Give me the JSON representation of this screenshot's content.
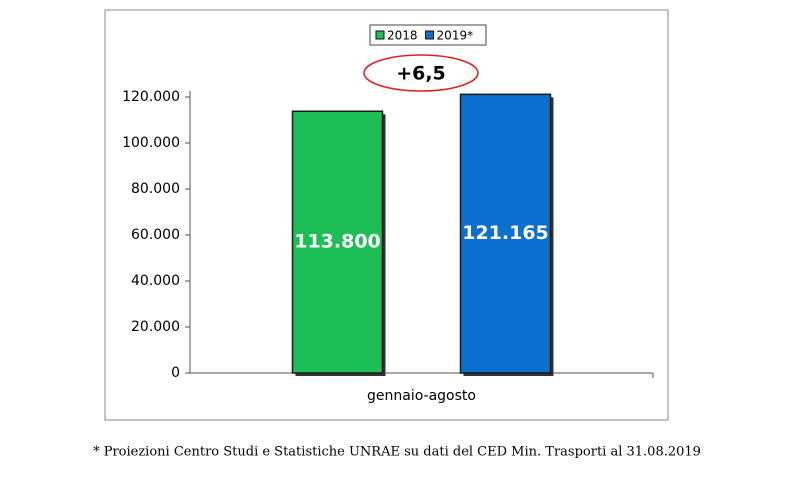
{
  "chart_data": {
    "type": "bar",
    "categories": [
      "gennaio-agosto"
    ],
    "series": [
      {
        "name": "2018",
        "color": "#1cbf55",
        "values": [
          113800
        ],
        "value_labels": [
          "113.800"
        ]
      },
      {
        "name": "2019*",
        "color": "#0a6fce",
        "values": [
          121165
        ],
        "value_labels": [
          "121.165"
        ]
      }
    ],
    "ylim": [
      0,
      120000
    ],
    "yticks": [
      0,
      {
        "value": 20000,
        "label": "20.000"
      },
      {
        "value": 40000,
        "label": "40.000"
      },
      {
        "value": 60000,
        "label": "60.000"
      },
      {
        "value": 80000,
        "label": "80.000"
      },
      {
        "value": 100000,
        "label": "100.000"
      },
      {
        "value": 120000,
        "label": "120.000"
      }
    ],
    "annotation": "+6,5",
    "footnote": "* Proiezioni Centro Studi e Statistiche UNRAE su dati del CED Min. Trasporti al 31.08.2019",
    "legend": "top"
  }
}
